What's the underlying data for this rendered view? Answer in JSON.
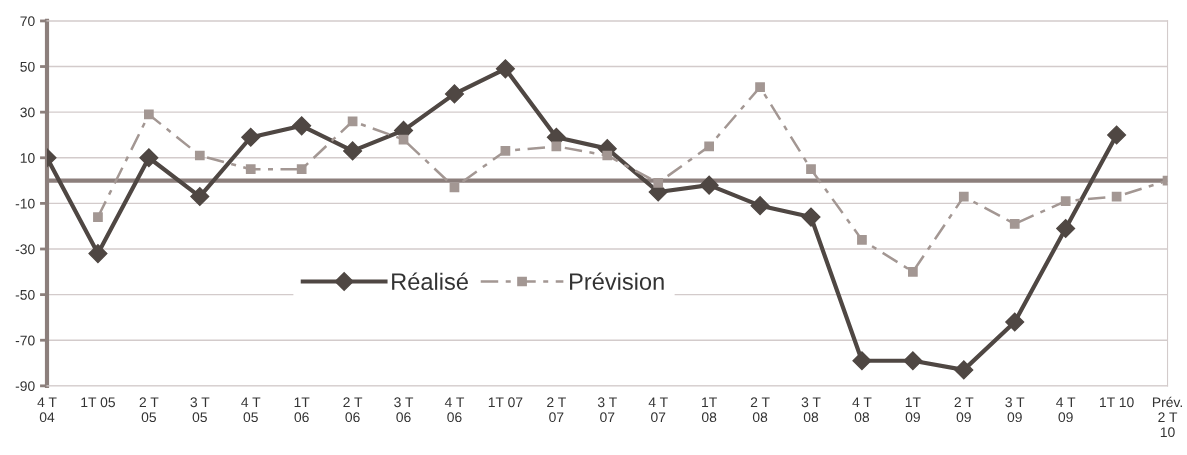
{
  "chart_data": {
    "type": "line",
    "categories": [
      "4 T\n04",
      "1T 05",
      "2 T\n05",
      "3 T\n05",
      "4 T\n05",
      "1T\n06",
      "2 T\n06",
      "3 T\n06",
      "4 T\n06",
      "1T 07",
      "2 T\n07",
      "3 T\n07",
      "4 T\n07",
      "1T\n08",
      "2 T\n08",
      "3 T\n08",
      "4 T\n08",
      "1T\n09",
      "2 T\n09",
      "3 T\n09",
      "4 T\n09",
      "1T 10",
      "Prév.\n2 T\n10"
    ],
    "series": [
      {
        "name": "Réalisé",
        "color": "#4f4743",
        "marker": "diamond",
        "line_style": "solid",
        "values": [
          10,
          -32,
          10,
          -7,
          19,
          24,
          13,
          22,
          38,
          49,
          19,
          14,
          -5,
          -2,
          -11,
          -16,
          -79,
          -79,
          -83,
          -62,
          -21,
          20,
          null
        ]
      },
      {
        "name": "Prévision",
        "color": "#a39793",
        "marker": "square",
        "line_style": "dashed",
        "values": [
          null,
          -16,
          29,
          11,
          5,
          5,
          26,
          18,
          -3,
          13,
          15,
          11,
          -1,
          15,
          41,
          5,
          -26,
          -40,
          -7,
          -19,
          -9,
          -7,
          0
        ]
      }
    ],
    "ylim": [
      -90,
      70
    ],
    "yticks": [
      -90,
      -70,
      -50,
      -30,
      -10,
      10,
      30,
      50,
      70
    ],
    "grid": "y",
    "legend": "center",
    "ref_lines": [
      {
        "axis": "y",
        "value": 0,
        "color": "#8c7f7c",
        "line_style": "solid"
      }
    ]
  }
}
